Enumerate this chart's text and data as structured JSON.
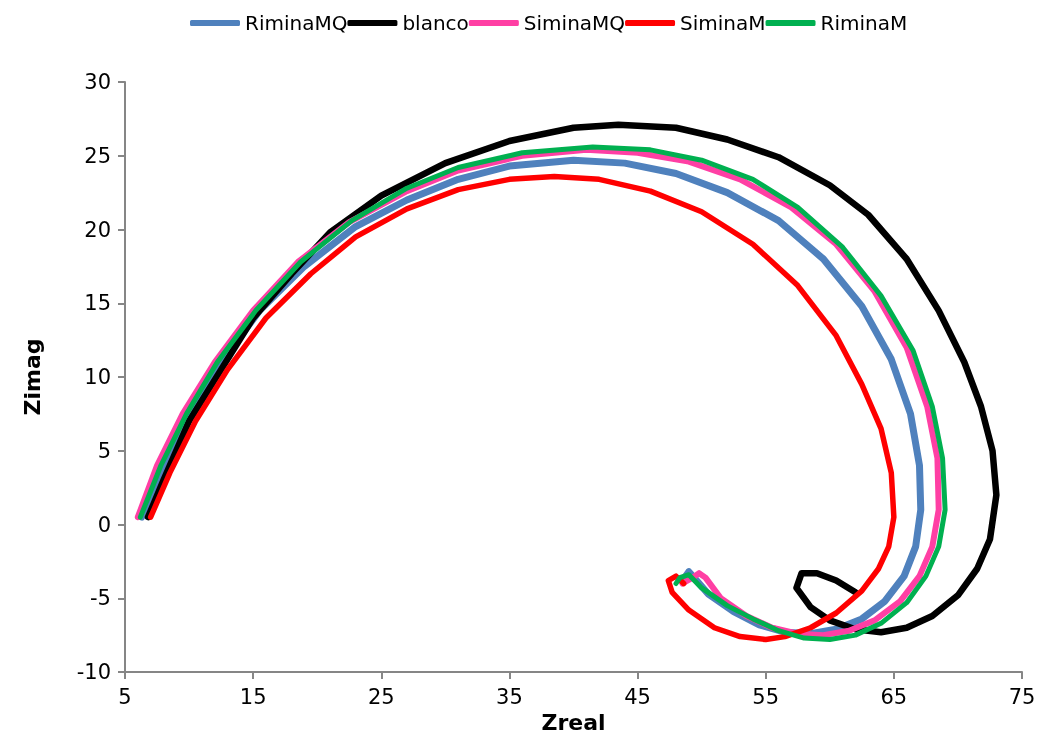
{
  "chart_data": {
    "type": "line",
    "xlabel": "Zreal",
    "ylabel": "Zimag",
    "xlim": [
      5,
      75
    ],
    "xticks": [
      5,
      15,
      25,
      35,
      45,
      55,
      65,
      75
    ],
    "ylim": [
      -10,
      30
    ],
    "yticks": [
      -10,
      -5,
      0,
      5,
      10,
      15,
      20,
      25,
      30
    ],
    "grid": false,
    "legend": "top",
    "marker": "none",
    "line_style": "solid",
    "series": [
      {
        "name": "RiminaMQ",
        "color": "#4f81bd",
        "x": [
          6.3,
          8,
          10,
          12.5,
          15.5,
          19,
          23,
          27,
          31,
          35,
          40,
          44,
          48,
          52,
          56,
          59.5,
          62.5,
          64.8,
          66.3,
          67,
          67.1,
          66.7,
          65.8,
          64.3,
          62.5,
          60.5,
          58.5,
          56.5,
          54.5,
          52.5,
          50.5,
          49.3,
          49,
          48.6
        ],
        "values": [
          0.5,
          4,
          7.5,
          11,
          14.5,
          17.5,
          20.2,
          22,
          23.4,
          24.3,
          24.7,
          24.5,
          23.8,
          22.5,
          20.6,
          18,
          14.8,
          11.2,
          7.5,
          4,
          1,
          -1.5,
          -3.5,
          -5.2,
          -6.4,
          -7.1,
          -7.4,
          -7.3,
          -6.8,
          -5.9,
          -4.7,
          -3.5,
          -3.2,
          -3.7
        ]
      },
      {
        "name": "blanco",
        "color": "#000000",
        "x": [
          6.8,
          8,
          10,
          12.5,
          15,
          18,
          21,
          25,
          30,
          35,
          40,
          43.5,
          48,
          52,
          56,
          60,
          63,
          66,
          68.5,
          70.5,
          71.8,
          72.7,
          73,
          72.5,
          71.5,
          70,
          68,
          66,
          64,
          62,
          60,
          58.5,
          57.4,
          57.8,
          59,
          60.5,
          62
        ],
        "values": [
          0.5,
          3,
          7,
          10.5,
          14,
          17,
          19.8,
          22.3,
          24.5,
          26,
          26.9,
          27.1,
          26.9,
          26.1,
          24.9,
          23,
          21,
          18,
          14.5,
          11,
          8,
          5,
          2,
          -1,
          -3,
          -4.8,
          -6.2,
          -7,
          -7.3,
          -7.1,
          -6.5,
          -5.6,
          -4.3,
          -3.3,
          -3.3,
          -3.8,
          -4.6
        ]
      },
      {
        "name": "SiminaMQ",
        "color": "#ff3fa4",
        "x": [
          6,
          7.5,
          9.5,
          12,
          15,
          18.5,
          22.5,
          27,
          31,
          36,
          41,
          45,
          49,
          53,
          57,
          60.5,
          63.5,
          66,
          67.6,
          68.4,
          68.5,
          68,
          67,
          65.5,
          63.5,
          61.5,
          59.5,
          57.5,
          55.5,
          53.5,
          51.5,
          50.3,
          49.8,
          49.3,
          48.5
        ],
        "values": [
          0.5,
          4,
          7.5,
          11,
          14.5,
          17.8,
          20.5,
          22.6,
          24,
          25,
          25.4,
          25.2,
          24.6,
          23.4,
          21.5,
          19,
          15.8,
          12,
          8,
          4.5,
          1,
          -1.5,
          -3.5,
          -5.2,
          -6.5,
          -7.2,
          -7.5,
          -7.4,
          -7,
          -6.2,
          -5,
          -3.6,
          -3.3,
          -3.6,
          -4
        ]
      },
      {
        "name": "SiminaM",
        "color": "#ff0000",
        "x": [
          7,
          8.5,
          10.5,
          13,
          16,
          19.5,
          23,
          27,
          31,
          35,
          38.5,
          42,
          46,
          50,
          54,
          57.5,
          60.5,
          62.5,
          64,
          64.8,
          65,
          64.6,
          63.8,
          62.5,
          60.5,
          58.5,
          56.5,
          55,
          53,
          51,
          49,
          47.7,
          47.4,
          48,
          48.6
        ],
        "values": [
          0.5,
          3.5,
          7,
          10.5,
          14,
          17,
          19.5,
          21.4,
          22.7,
          23.4,
          23.6,
          23.4,
          22.6,
          21.2,
          19,
          16.2,
          12.8,
          9.5,
          6.5,
          3.5,
          0.5,
          -1.5,
          -3,
          -4.5,
          -6,
          -7,
          -7.6,
          -7.8,
          -7.6,
          -7,
          -5.8,
          -4.6,
          -3.8,
          -3.5,
          -4
        ]
      },
      {
        "name": "RiminaM",
        "color": "#00b050",
        "x": [
          6.2,
          7.8,
          9.8,
          12.2,
          15.2,
          18.7,
          22.7,
          27,
          31,
          36,
          41.5,
          46,
          50,
          54,
          57.5,
          61,
          64,
          66.5,
          68,
          68.8,
          69,
          68.5,
          67.5,
          66,
          64,
          62,
          60,
          58,
          56,
          54,
          52,
          50,
          49,
          48.3,
          48
        ],
        "values": [
          0.5,
          4,
          7.5,
          11,
          14.5,
          17.8,
          20.6,
          22.8,
          24.2,
          25.2,
          25.6,
          25.4,
          24.7,
          23.4,
          21.5,
          18.8,
          15.5,
          11.8,
          8,
          4.5,
          1,
          -1.5,
          -3.5,
          -5.3,
          -6.7,
          -7.5,
          -7.8,
          -7.7,
          -7.2,
          -6.4,
          -5.5,
          -4.3,
          -3.4,
          -3.6,
          -4
        ]
      }
    ]
  }
}
